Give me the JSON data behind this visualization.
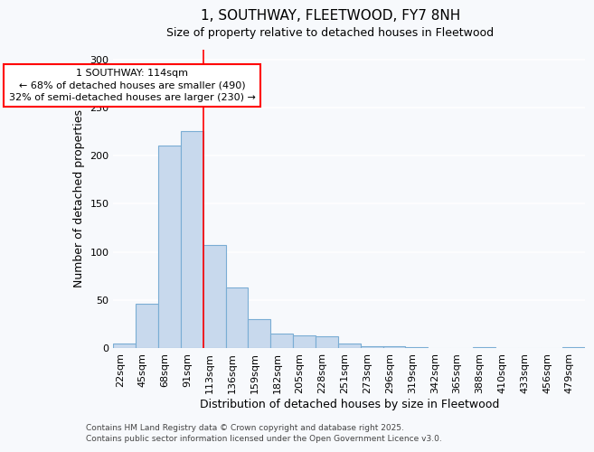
{
  "title": "1, SOUTHWAY, FLEETWOOD, FY7 8NH",
  "subtitle": "Size of property relative to detached houses in Fleetwood",
  "xlabel": "Distribution of detached houses by size in Fleetwood",
  "ylabel": "Number of detached properties",
  "bar_color": "#c8d9ed",
  "bar_edge_color": "#7aadd4",
  "background_color": "#f7f9fc",
  "grid_color": "#e0e8f0",
  "categories": [
    "22sqm",
    "45sqm",
    "68sqm",
    "91sqm",
    "113sqm",
    "136sqm",
    "159sqm",
    "182sqm",
    "205sqm",
    "228sqm",
    "251sqm",
    "273sqm",
    "296sqm",
    "319sqm",
    "342sqm",
    "365sqm",
    "388sqm",
    "410sqm",
    "433sqm",
    "456sqm",
    "479sqm"
  ],
  "values": [
    5,
    46,
    210,
    225,
    107,
    63,
    30,
    15,
    13,
    12,
    5,
    2,
    2,
    1,
    0,
    0,
    1,
    0,
    0,
    0,
    1
  ],
  "ylim": [
    0,
    310
  ],
  "yticks": [
    0,
    50,
    100,
    150,
    200,
    250,
    300
  ],
  "property_line_bin_index": 4,
  "property_line_label": "1 SOUTHWAY: 114sqm",
  "annotation_line1": "← 68% of detached houses are smaller (490)",
  "annotation_line2": "32% of semi-detached houses are larger (230) →",
  "footer_line1": "Contains HM Land Registry data © Crown copyright and database right 2025.",
  "footer_line2": "Contains public sector information licensed under the Open Government Licence v3.0.",
  "title_fontsize": 11,
  "subtitle_fontsize": 9,
  "axis_label_fontsize": 9,
  "tick_fontsize": 8,
  "annotation_fontsize": 8,
  "footer_fontsize": 6.5
}
